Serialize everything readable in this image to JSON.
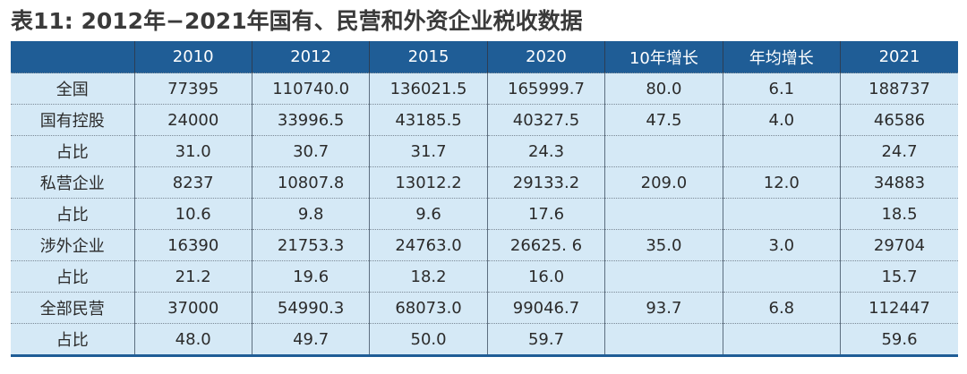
{
  "header": {
    "title": "表11: 2012年−2021年国有、民营和外资企业税收数据"
  },
  "table": {
    "columns": [
      null,
      "2010",
      "2012",
      "2015",
      "2020",
      "10年增长",
      "年均增长",
      "2021"
    ],
    "rows": [
      [
        "全国",
        "77395",
        "110740.0",
        "136021.5",
        "165999.7",
        "80.0",
        "6.1",
        "188737"
      ],
      [
        "国有控股",
        "24000",
        "33996.5",
        "43185.5",
        "40327.5",
        "47.5",
        "4.0",
        "46586"
      ],
      [
        "占比",
        "31.0",
        "30.7",
        "31.7",
        "24.3",
        null,
        null,
        "24.7"
      ],
      [
        "私营企业",
        "8237",
        "10807.8",
        "13012.2",
        "29133.2",
        "209.0",
        "12.0",
        "34883"
      ],
      [
        "占比",
        "10.6",
        "9.8",
        "9.6",
        "17.6",
        null,
        null,
        "18.5"
      ],
      [
        "涉外企业",
        "16390",
        "21753.3",
        "24763.0",
        "26625. 6",
        "35.0",
        "3.0",
        "29704"
      ],
      [
        "占比",
        "21.2",
        "19.6",
        "18.2",
        "16.0",
        null,
        null,
        "15.7"
      ],
      [
        "全部民营",
        "37000",
        "54990.3",
        "68073.0",
        "99046.7",
        "93.7",
        "6.8",
        "112447"
      ],
      [
        "占比",
        "48.0",
        "49.7",
        "50.0",
        "59.7",
        null,
        null,
        "59.6"
      ]
    ]
  }
}
